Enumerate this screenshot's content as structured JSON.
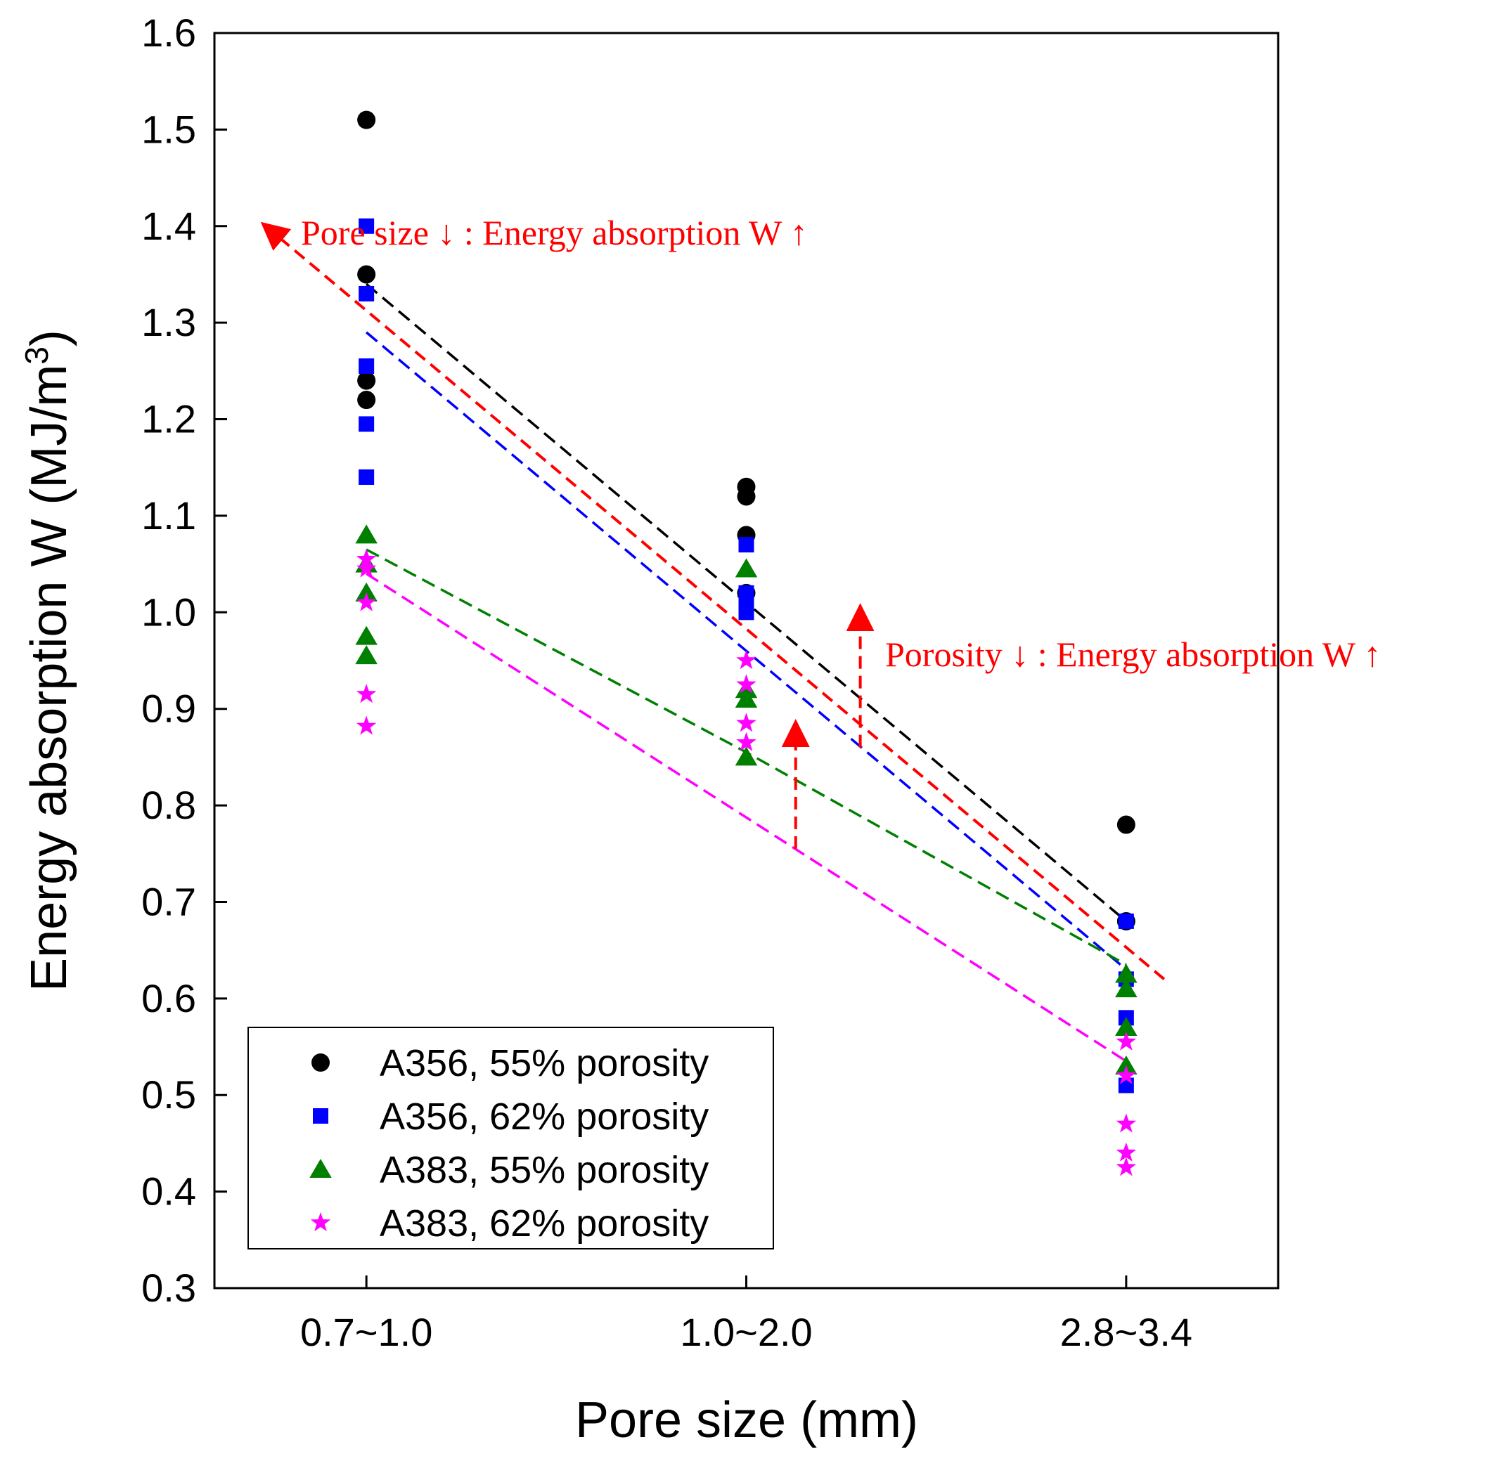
{
  "chart_data": {
    "type": "scatter",
    "title": "",
    "xlabel": "Pore size (mm)",
    "ylabel_main": "Energy absorption W (MJ/m",
    "ylabel_sup": "3",
    "ylabel_close": ")",
    "categories": [
      "0.7~1.0",
      "1.0~2.0",
      "2.8~3.4"
    ],
    "xlim": [
      -0.4,
      2.4
    ],
    "ylim": [
      0.3,
      1.6
    ],
    "yticks": [
      0.3,
      0.4,
      0.5,
      0.6,
      0.7,
      0.8,
      0.9,
      1.0,
      1.1,
      1.2,
      1.3,
      1.4,
      1.5,
      1.6
    ],
    "ytick_labels": [
      "0.3",
      "0.4",
      "0.5",
      "0.6",
      "0.7",
      "0.8",
      "0.9",
      "1.0",
      "1.1",
      "1.2",
      "1.3",
      "1.4",
      "1.5",
      "1.6"
    ],
    "grid": false,
    "legend_position": "bottom-left",
    "series": [
      {
        "name": "A356, 55% porosity",
        "marker": "circle",
        "color": "#000000",
        "points": [
          [
            0,
            1.51
          ],
          [
            0,
            1.35
          ],
          [
            0,
            1.24
          ],
          [
            0,
            1.22
          ],
          [
            1,
            1.13
          ],
          [
            1,
            1.12
          ],
          [
            1,
            1.08
          ],
          [
            1,
            1.02
          ],
          [
            2,
            0.78
          ],
          [
            2,
            0.68
          ]
        ],
        "trend": [
          [
            0,
            1.34
          ],
          [
            2,
            0.68
          ]
        ]
      },
      {
        "name": "A356, 62% porosity",
        "marker": "square",
        "color": "#0000ff",
        "points": [
          [
            0,
            1.4
          ],
          [
            0,
            1.33
          ],
          [
            0,
            1.255
          ],
          [
            0,
            1.195
          ],
          [
            0,
            1.14
          ],
          [
            1,
            1.07
          ],
          [
            1,
            1.02
          ],
          [
            1,
            1.01
          ],
          [
            1,
            1.0
          ],
          [
            2,
            0.68
          ],
          [
            2,
            0.62
          ],
          [
            2,
            0.58
          ],
          [
            2,
            0.51
          ]
        ],
        "trend": [
          [
            0,
            1.29
          ],
          [
            2,
            0.63
          ]
        ]
      },
      {
        "name": "A383, 55% porosity",
        "marker": "triangle",
        "color": "#008000",
        "points": [
          [
            0,
            1.08
          ],
          [
            0,
            1.05
          ],
          [
            0,
            1.02
          ],
          [
            0,
            0.975
          ],
          [
            0,
            0.955
          ],
          [
            1,
            1.045
          ],
          [
            1,
            0.92
          ],
          [
            1,
            0.91
          ],
          [
            1,
            0.85
          ],
          [
            2,
            0.625
          ],
          [
            2,
            0.61
          ],
          [
            2,
            0.57
          ],
          [
            2,
            0.53
          ]
        ],
        "trend": [
          [
            0,
            1.065
          ],
          [
            1,
            0.855
          ],
          [
            2,
            0.635
          ]
        ]
      },
      {
        "name": "A383, 62% porosity",
        "marker": "star",
        "color": "#ff00ff",
        "points": [
          [
            0,
            1.055
          ],
          [
            0,
            1.045
          ],
          [
            0,
            1.01
          ],
          [
            0,
            0.915
          ],
          [
            0,
            0.882
          ],
          [
            1,
            0.95
          ],
          [
            1,
            0.925
          ],
          [
            1,
            0.885
          ],
          [
            1,
            0.865
          ],
          [
            2,
            0.555
          ],
          [
            2,
            0.52
          ],
          [
            2,
            0.47
          ],
          [
            2,
            0.44
          ],
          [
            2,
            0.425
          ]
        ],
        "trend": [
          [
            0,
            1.04
          ],
          [
            2,
            0.535
          ]
        ]
      }
    ],
    "annotations": [
      {
        "text": "Pore size ↓ : Energy absorption W ↑",
        "color": "#ff0000",
        "anchor": [
          -0.23,
          1.405
        ],
        "arrow": {
          "from": [
            2.1,
            0.62
          ],
          "to": [
            -0.25,
            1.395
          ]
        }
      },
      {
        "text": "Porosity ↓ : Energy absorption W ↑",
        "color": "#ff0000",
        "anchor": [
          1.37,
          0.95
        ],
        "arrow": {
          "from": [
            1.3,
            0.86
          ],
          "to": [
            1.3,
            0.995
          ]
        }
      },
      {
        "text": "",
        "color": "#ff0000",
        "arrow": {
          "from": [
            1.13,
            0.755
          ],
          "to": [
            1.13,
            0.875
          ]
        }
      }
    ]
  }
}
